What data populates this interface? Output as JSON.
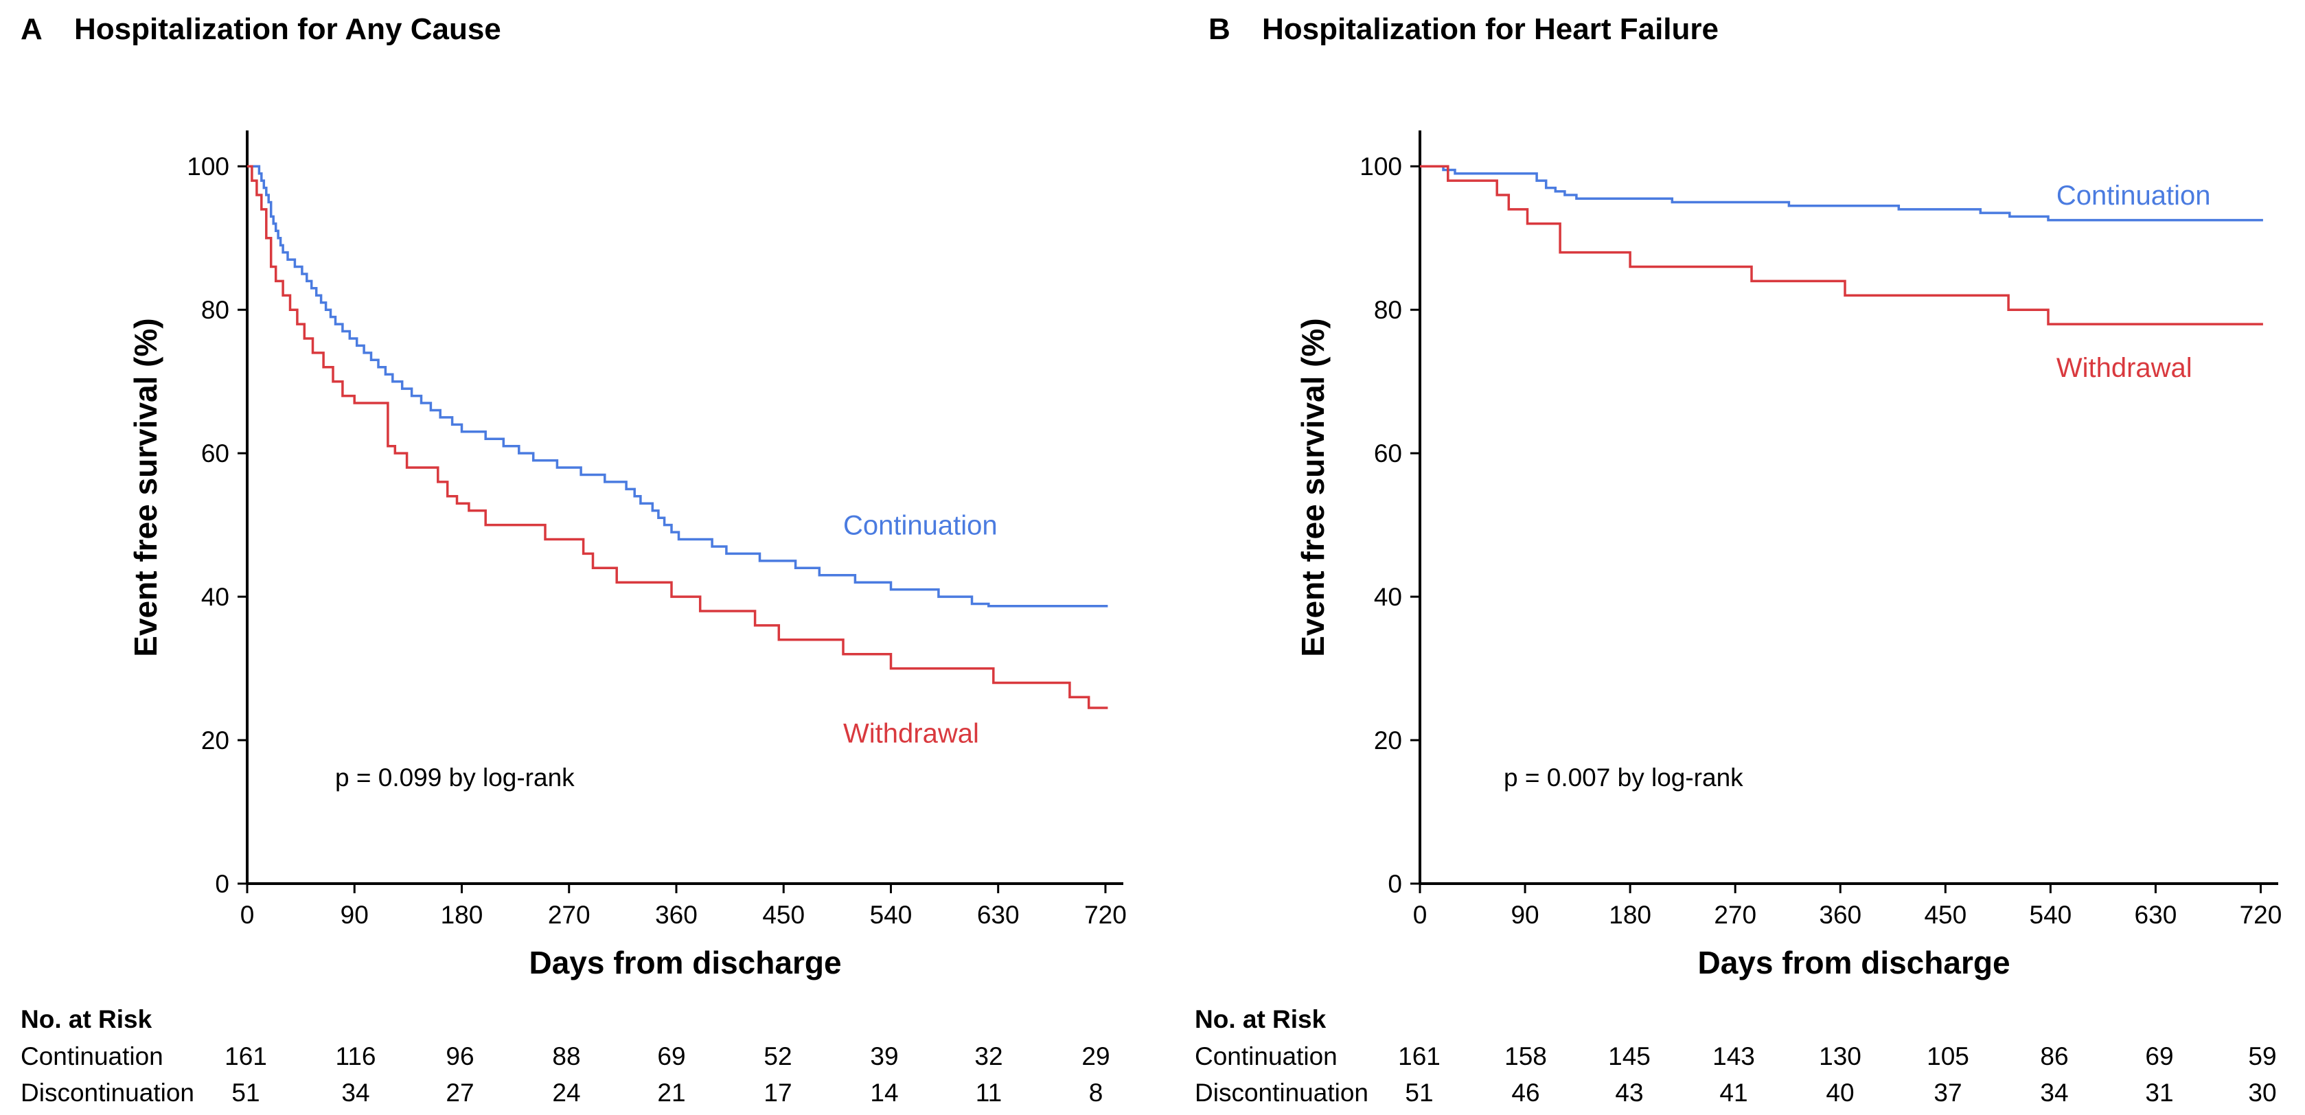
{
  "chart_data": [
    {
      "type": "line",
      "panel": "A",
      "title": "Hospitalization for Any Cause",
      "xlabel": "Days from discharge",
      "ylabel": "Event free survival (%)",
      "xlim": [
        0,
        735
      ],
      "ylim": [
        0,
        105
      ],
      "x_ticks": [
        0,
        90,
        180,
        270,
        360,
        450,
        540,
        630,
        720
      ],
      "y_ticks": [
        0,
        20,
        40,
        60,
        80,
        100
      ],
      "annotation": "p = 0.099 by log-rank",
      "series": [
        {
          "name": "Continuation",
          "color": "#4a7be0",
          "label_pos": [
            500,
            50
          ],
          "steps": [
            [
              0,
              100
            ],
            [
              8,
              100
            ],
            [
              10,
              99
            ],
            [
              12,
              98
            ],
            [
              14,
              97
            ],
            [
              16,
              96
            ],
            [
              18,
              95
            ],
            [
              20,
              93
            ],
            [
              22,
              92
            ],
            [
              24,
              91
            ],
            [
              26,
              90
            ],
            [
              28,
              89
            ],
            [
              30,
              88
            ],
            [
              34,
              87
            ],
            [
              40,
              86
            ],
            [
              46,
              85
            ],
            [
              50,
              84
            ],
            [
              54,
              83
            ],
            [
              58,
              82
            ],
            [
              62,
              81
            ],
            [
              66,
              80
            ],
            [
              70,
              79
            ],
            [
              74,
              78
            ],
            [
              80,
              77
            ],
            [
              86,
              76
            ],
            [
              92,
              75
            ],
            [
              98,
              74
            ],
            [
              104,
              73
            ],
            [
              110,
              72
            ],
            [
              116,
              71
            ],
            [
              122,
              70
            ],
            [
              130,
              69
            ],
            [
              138,
              68
            ],
            [
              146,
              67
            ],
            [
              154,
              66
            ],
            [
              162,
              65
            ],
            [
              172,
              64
            ],
            [
              180,
              63
            ],
            [
              200,
              62
            ],
            [
              215,
              61
            ],
            [
              228,
              60
            ],
            [
              240,
              59
            ],
            [
              260,
              58
            ],
            [
              280,
              57
            ],
            [
              300,
              56
            ],
            [
              318,
              55
            ],
            [
              325,
              54
            ],
            [
              330,
              53
            ],
            [
              340,
              52
            ],
            [
              345,
              51
            ],
            [
              350,
              50
            ],
            [
              356,
              49
            ],
            [
              362,
              48
            ],
            [
              390,
              47
            ],
            [
              402,
              46
            ],
            [
              430,
              45
            ],
            [
              460,
              44
            ],
            [
              480,
              43
            ],
            [
              510,
              42
            ],
            [
              540,
              41
            ],
            [
              580,
              40
            ],
            [
              608,
              39
            ],
            [
              622,
              38.7
            ],
            [
              722,
              38.7
            ]
          ]
        },
        {
          "name": "Withdrawal",
          "color": "#d9393e",
          "label_pos": [
            500,
            21
          ],
          "steps": [
            [
              0,
              100
            ],
            [
              4,
              98
            ],
            [
              8,
              96
            ],
            [
              12,
              94
            ],
            [
              16,
              90
            ],
            [
              20,
              86
            ],
            [
              24,
              84
            ],
            [
              30,
              82
            ],
            [
              36,
              80
            ],
            [
              42,
              78
            ],
            [
              48,
              76
            ],
            [
              55,
              74
            ],
            [
              64,
              72
            ],
            [
              72,
              70
            ],
            [
              80,
              68
            ],
            [
              90,
              67
            ],
            [
              118,
              61
            ],
            [
              124,
              60
            ],
            [
              134,
              58
            ],
            [
              160,
              56
            ],
            [
              168,
              54
            ],
            [
              176,
              53
            ],
            [
              186,
              52
            ],
            [
              200,
              50
            ],
            [
              250,
              48
            ],
            [
              282,
              46
            ],
            [
              290,
              44
            ],
            [
              310,
              42
            ],
            [
              356,
              40
            ],
            [
              380,
              38
            ],
            [
              426,
              36
            ],
            [
              446,
              34
            ],
            [
              500,
              32
            ],
            [
              540,
              30
            ],
            [
              626,
              28
            ],
            [
              690,
              26
            ],
            [
              706,
              24.5
            ],
            [
              722,
              24.5
            ]
          ]
        }
      ],
      "risk_table": {
        "header": "No. at Risk",
        "rows": [
          {
            "label": "Continuation",
            "values": [
              "161",
              "116",
              "96",
              "88",
              "69",
              "52",
              "39",
              "32",
              "29"
            ]
          },
          {
            "label": "Discontinuation",
            "values": [
              "51",
              "34",
              "27",
              "24",
              "21",
              "17",
              "14",
              "11",
              "8"
            ]
          }
        ]
      }
    },
    {
      "type": "line",
      "panel": "B",
      "title": "Hospitalization for Heart Failure",
      "xlabel": "Days from discharge",
      "ylabel": "Event free survival (%)",
      "xlim": [
        0,
        735
      ],
      "ylim": [
        0,
        105
      ],
      "x_ticks": [
        0,
        90,
        180,
        270,
        360,
        450,
        540,
        630,
        720
      ],
      "y_ticks": [
        0,
        20,
        40,
        60,
        80,
        100
      ],
      "annotation": "p = 0.007 by log-rank",
      "series": [
        {
          "name": "Continuation",
          "color": "#4a7be0",
          "label_pos": [
            545,
            96
          ],
          "steps": [
            [
              0,
              100
            ],
            [
              10,
              100
            ],
            [
              20,
              99.5
            ],
            [
              30,
              99
            ],
            [
              60,
              99
            ],
            [
              80,
              99
            ],
            [
              100,
              98
            ],
            [
              108,
              97
            ],
            [
              116,
              96.5
            ],
            [
              124,
              96
            ],
            [
              134,
              95.5
            ],
            [
              180,
              95.5
            ],
            [
              216,
              95
            ],
            [
              270,
              95
            ],
            [
              316,
              94.5
            ],
            [
              410,
              94
            ],
            [
              480,
              93.5
            ],
            [
              505,
              93
            ],
            [
              538,
              92.5
            ],
            [
              722,
              92.5
            ]
          ]
        },
        {
          "name": "Withdrawal",
          "color": "#d9393e",
          "label_pos": [
            545,
            72
          ],
          "steps": [
            [
              0,
              100
            ],
            [
              24,
              98
            ],
            [
              66,
              96
            ],
            [
              76,
              94
            ],
            [
              92,
              92
            ],
            [
              120,
              88
            ],
            [
              180,
              86
            ],
            [
              284,
              84
            ],
            [
              364,
              82
            ],
            [
              404,
              82
            ],
            [
              504,
              80
            ],
            [
              538,
              78
            ],
            [
              722,
              78
            ]
          ]
        }
      ],
      "risk_table": {
        "header": "No. at Risk",
        "rows": [
          {
            "label": "Continuation",
            "values": [
              "161",
              "158",
              "145",
              "143",
              "130",
              "105",
              "86",
              "69",
              "59"
            ]
          },
          {
            "label": "Discontinuation",
            "values": [
              "51",
              "46",
              "43",
              "41",
              "40",
              "37",
              "34",
              "31",
              "30"
            ]
          }
        ]
      }
    }
  ]
}
